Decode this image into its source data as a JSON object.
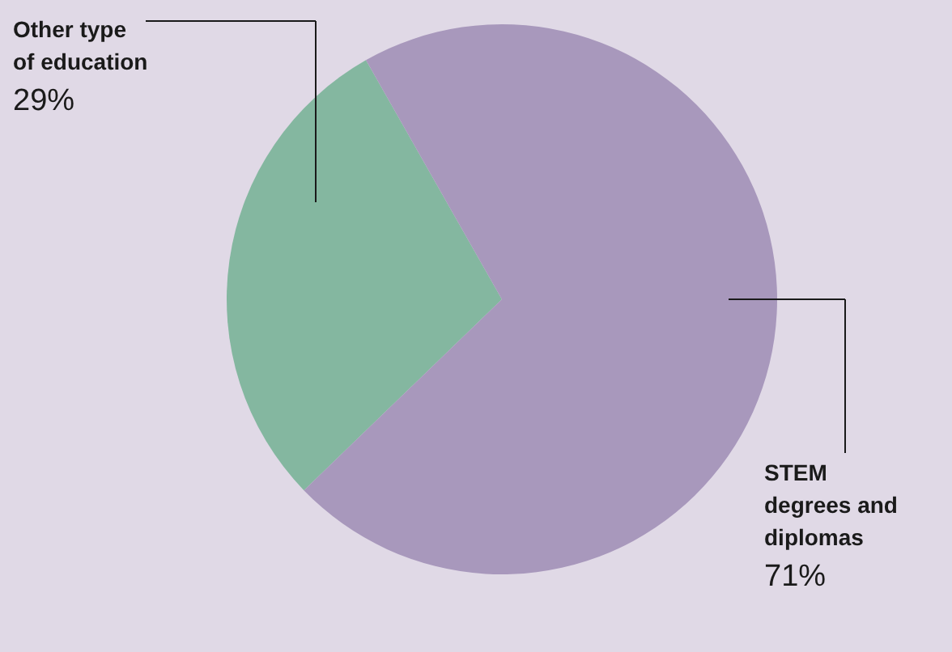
{
  "chart_data": {
    "type": "pie",
    "categories": [
      "Other type\nof education",
      "STEM\ndegrees and\ndiplomas"
    ],
    "values": [
      29,
      71
    ],
    "colors": [
      "#84b7a0",
      "#a898bc"
    ],
    "value_labels": [
      "29%",
      "71%"
    ]
  }
}
